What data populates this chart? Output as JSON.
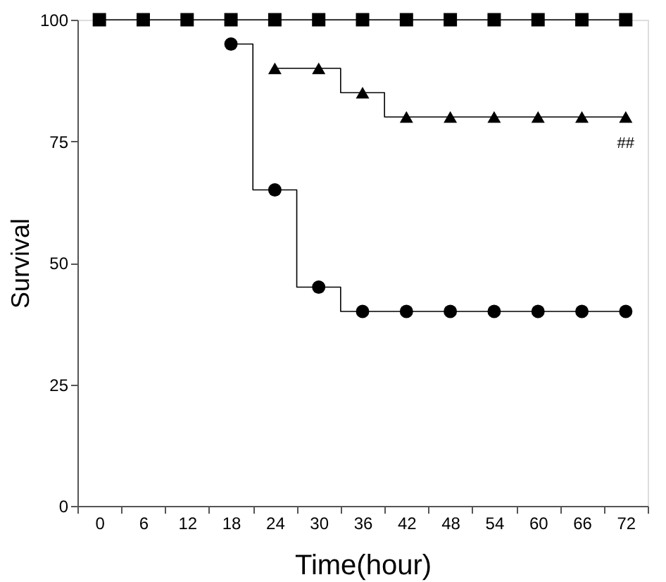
{
  "chart_data": {
    "type": "step",
    "xlabel": "Time(hour)",
    "ylabel": "Survival",
    "categories": [
      "0",
      "6",
      "12",
      "18",
      "24",
      "30",
      "36",
      "42",
      "48",
      "54",
      "60",
      "66",
      "72"
    ],
    "ylim": [
      0,
      100
    ],
    "yticks": [
      0,
      25,
      50,
      75,
      100
    ],
    "grid": false,
    "series": [
      {
        "color": "#000000",
        "marker": "circle",
        "values": [
          null,
          null,
          null,
          95,
          65,
          45,
          40,
          40,
          40,
          40,
          40,
          40,
          40
        ]
      },
      {
        "color": "#000000",
        "marker": "triangle",
        "values": [
          null,
          null,
          null,
          null,
          90,
          90,
          85,
          80,
          80,
          80,
          80,
          80,
          80
        ]
      },
      {
        "color": "#000000",
        "marker": "square",
        "values": [
          100,
          100,
          100,
          100,
          100,
          100,
          100,
          100,
          100,
          100,
          100,
          100,
          100
        ]
      }
    ],
    "annotations": [
      "##"
    ]
  }
}
